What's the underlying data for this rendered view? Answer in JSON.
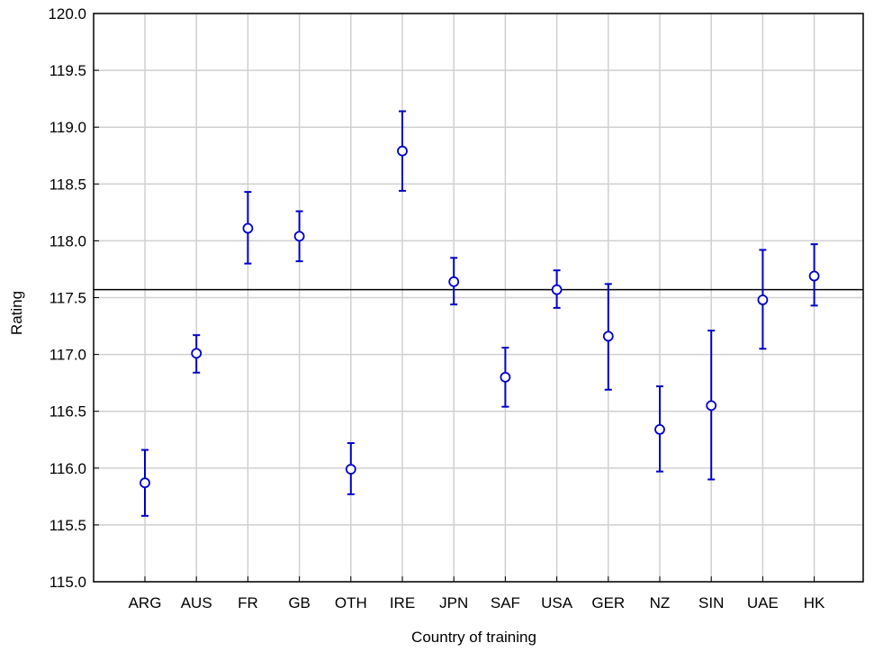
{
  "chart_data": {
    "type": "scatter",
    "title": "",
    "xlabel": "Country of training",
    "ylabel": "Rating",
    "ylim": [
      115.0,
      120.0
    ],
    "y_ticks": [
      115.0,
      115.5,
      116.0,
      116.5,
      117.0,
      117.5,
      118.0,
      118.5,
      119.0,
      119.5,
      120.0
    ],
    "y_tick_labels": [
      "115.0",
      "115.5",
      "116.0",
      "116.5",
      "117.0",
      "117.5",
      "118.0",
      "118.5",
      "119.0",
      "119.5",
      "120.0"
    ],
    "categories": [
      "ARG",
      "AUS",
      "FR",
      "GB",
      "OTH",
      "IRE",
      "JPN",
      "SAF",
      "USA",
      "GER",
      "NZ",
      "SIN",
      "UAE",
      "HK"
    ],
    "series": [
      {
        "values": [
          115.87,
          117.01,
          118.11,
          118.04,
          115.99,
          118.79,
          117.64,
          116.8,
          117.57,
          117.16,
          116.34,
          116.55,
          117.48,
          117.69
        ],
        "lower": [
          115.58,
          116.84,
          117.8,
          117.82,
          115.77,
          118.44,
          117.44,
          116.54,
          117.41,
          116.69,
          115.97,
          115.9,
          117.05,
          117.43
        ],
        "upper": [
          116.16,
          117.17,
          118.43,
          118.26,
          116.22,
          119.14,
          117.85,
          117.06,
          117.74,
          117.62,
          116.72,
          117.21,
          117.92,
          117.97
        ]
      }
    ],
    "reference_line": 117.57,
    "grid": true,
    "colors": {
      "marker": "#0000cc",
      "reference_line": "#000000",
      "grid": "#d0d0d0",
      "frame": "#000000"
    }
  }
}
